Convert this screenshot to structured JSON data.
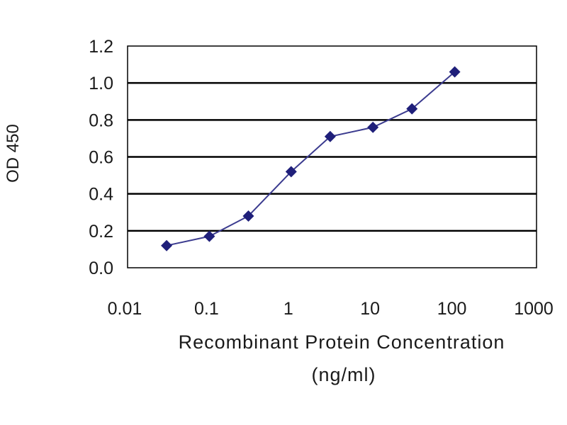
{
  "chart_data": {
    "type": "line",
    "title": "",
    "xlabel": "Recombinant Protein Concentration",
    "xlabel_unit": "(ng/ml)",
    "ylabel": "OD 450",
    "x_scale": "log",
    "xlim": [
      0.01,
      1000
    ],
    "ylim": [
      0.0,
      1.2
    ],
    "x_ticks": [
      "0.01",
      "0.1",
      "1",
      "10",
      "100",
      "1000"
    ],
    "y_ticks": [
      "0.0",
      "0.2",
      "0.4",
      "0.6",
      "0.8",
      "1.0",
      "1.2"
    ],
    "grid": "horizontal",
    "legend": "none",
    "series": [
      {
        "x": [
          0.03,
          0.1,
          0.3,
          1,
          3,
          10,
          30,
          100
        ],
        "y": [
          0.12,
          0.17,
          0.28,
          0.52,
          0.71,
          0.76,
          0.86,
          1.06
        ]
      }
    ],
    "colors": {
      "line": "#3b3b8f",
      "marker": "#1f1f7a",
      "grid": "#000000",
      "frame": "#000000"
    }
  }
}
